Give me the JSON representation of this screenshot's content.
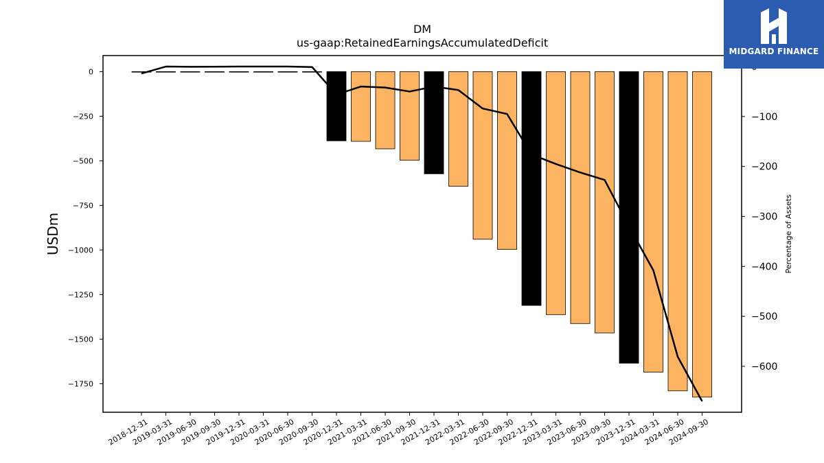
{
  "chart_data": {
    "type": "bar",
    "title": "DM",
    "subtitle": "us-gaap:RetainedEarningsAccumulatedDeficit",
    "ylabel": "USDm",
    "y2label": "Percentage of Assets",
    "ylim": [
      -1910,
      90
    ],
    "y2lim": [
      -692,
      22
    ],
    "yticks": [
      0,
      -250,
      -500,
      -750,
      -1000,
      -1250,
      -1500,
      -1750
    ],
    "y2ticks": [
      0,
      -100,
      -200,
      -300,
      -400,
      -500,
      -600
    ],
    "categories": [
      "2018-12-31",
      "2019-03-31",
      "2019-06-30",
      "2019-09-30",
      "2019-12-31",
      "2020-03-31",
      "2020-06-30",
      "2020-09-30",
      "2020-12-31",
      "2021-03-31",
      "2021-06-30",
      "2021-09-30",
      "2021-12-31",
      "2022-03-31",
      "2022-06-30",
      "2022-09-30",
      "2022-12-31",
      "2023-03-31",
      "2023-06-30",
      "2023-09-30",
      "2023-12-31",
      "2024-03-31",
      "2024-06-30",
      "2024-09-30"
    ],
    "series": [
      {
        "values": [
          -0.5,
          -1,
          -1,
          -1,
          -1,
          -1,
          -1,
          -2,
          -388,
          -391,
          -433,
          -497,
          -573,
          -643,
          -940,
          -997,
          -1311,
          -1363,
          -1413,
          -1465,
          -1635,
          -1685,
          -1790,
          -1825
        ],
        "bar_colors": [
          "#000000",
          "#000000",
          "#000000",
          "#000000",
          "#000000",
          "#000000",
          "#000000",
          "#000000",
          "#000000",
          "#fdb462",
          "#fdb462",
          "#fdb462",
          "#000000",
          "#fdb462",
          "#fdb462",
          "#fdb462",
          "#000000",
          "#fdb462",
          "#fdb462",
          "#fdb462",
          "#000000",
          "#fdb462",
          "#fdb462",
          "#fdb462"
        ]
      },
      {
        "axis": "right",
        "values": [
          -14,
          0,
          -0.5,
          -0.3,
          0,
          0,
          0,
          -1,
          -56,
          -40,
          -42,
          -50,
          -40,
          -47,
          -84,
          -95,
          -176,
          -195,
          -212,
          -227,
          -320,
          -408,
          -581,
          -670
        ],
        "color": "#000000"
      }
    ],
    "grid": false
  },
  "logo": {
    "text": "MIDGARD FINANCE",
    "color": "#2b5cb0"
  }
}
